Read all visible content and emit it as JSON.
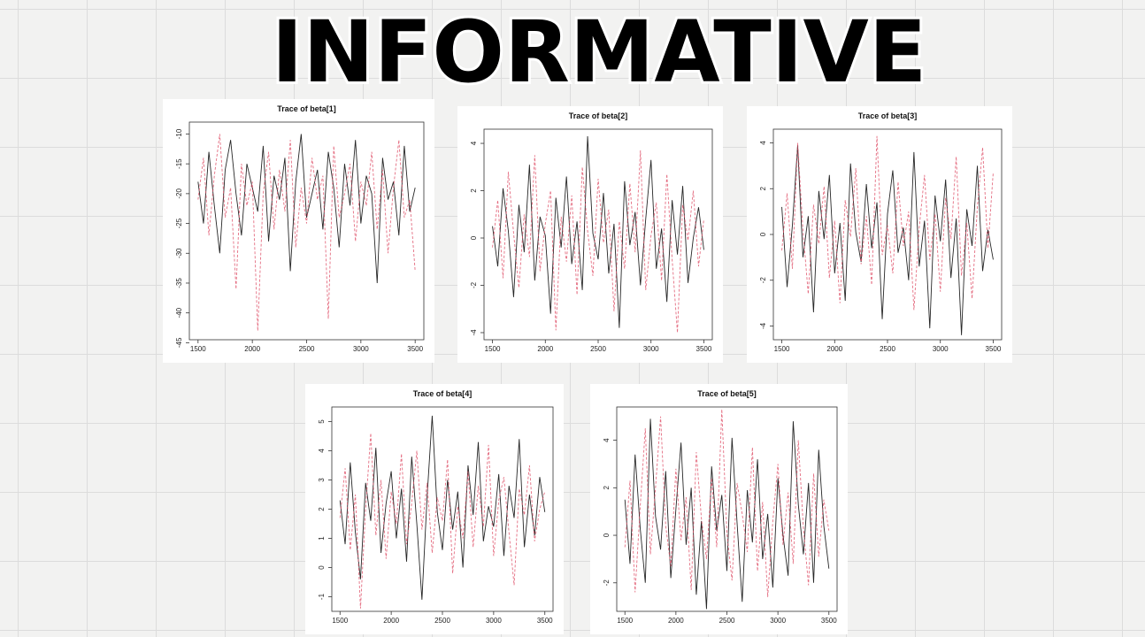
{
  "header": {
    "title": "INFORMATIVE"
  },
  "chart_data": [
    {
      "type": "line",
      "title": "Trace of beta[1]",
      "x": [
        1500,
        1550,
        1600,
        1650,
        1700,
        1750,
        1800,
        1850,
        1900,
        1950,
        2000,
        2050,
        2100,
        2150,
        2200,
        2250,
        2300,
        2350,
        2400,
        2450,
        2500,
        2550,
        2600,
        2650,
        2700,
        2750,
        2800,
        2850,
        2900,
        2950,
        3000,
        3050,
        3100,
        3150,
        3200,
        3250,
        3300,
        3350,
        3400,
        3450,
        3500
      ],
      "series": [
        {
          "color": "#000000",
          "line_style": "solid",
          "values": [
            -18,
            -25,
            -13,
            -22,
            -30,
            -16,
            -11,
            -20,
            -27,
            -15,
            -19,
            -23,
            -12,
            -28,
            -17,
            -21,
            -14,
            -33,
            -18,
            -10,
            -24,
            -20,
            -16,
            -26,
            -13,
            -19,
            -29,
            -15,
            -22,
            -11,
            -25,
            -17,
            -20,
            -35,
            -14,
            -21,
            -18,
            -27,
            -12,
            -23,
            -19
          ]
        },
        {
          "color": "#df536b",
          "line_style": "dashed",
          "values": [
            -21,
            -14,
            -27,
            -17,
            -10,
            -24,
            -19,
            -36,
            -15,
            -22,
            -18,
            -43,
            -20,
            -13,
            -26,
            -16,
            -23,
            -11,
            -29,
            -19,
            -25,
            -14,
            -21,
            -17,
            -41,
            -12,
            -24,
            -20,
            -15,
            -28,
            -18,
            -22,
            -13,
            -26,
            -16,
            -30,
            -19,
            -11,
            -24,
            -21,
            -33
          ]
        }
      ],
      "xlim": [
        1420,
        3580
      ],
      "xticks": [
        1500,
        2000,
        2500,
        3000,
        3500
      ],
      "ylim": [
        -44.5,
        -8
      ],
      "yticks": [
        -45,
        -40,
        -35,
        -30,
        -25,
        -20,
        -15,
        -10
      ]
    },
    {
      "type": "line",
      "title": "Trace of beta[2]",
      "x": [
        1500,
        1550,
        1600,
        1650,
        1700,
        1750,
        1800,
        1850,
        1900,
        1950,
        2000,
        2050,
        2100,
        2150,
        2200,
        2250,
        2300,
        2350,
        2400,
        2450,
        2500,
        2550,
        2600,
        2650,
        2700,
        2750,
        2800,
        2850,
        2900,
        2950,
        3000,
        3050,
        3100,
        3150,
        3200,
        3250,
        3300,
        3350,
        3400,
        3450,
        3500
      ],
      "series": [
        {
          "color": "#000000",
          "line_style": "solid",
          "values": [
            0.5,
            -1.2,
            2.1,
            0.3,
            -2.5,
            1.4,
            -0.6,
            3.1,
            -1.8,
            0.9,
            0.1,
            -3.2,
            1.7,
            -0.4,
            2.6,
            -1.1,
            0.7,
            -2.2,
            4.3,
            0.2,
            -0.9,
            1.9,
            -1.5,
            0.6,
            -3.8,
            2.4,
            -0.3,
            1.1,
            -2.0,
            0.8,
            3.3,
            -1.3,
            0.4,
            -2.7,
            1.6,
            -0.7,
            2.2,
            -1.9,
            0.0,
            1.3,
            -0.5
          ]
        },
        {
          "color": "#df536b",
          "line_style": "dashed",
          "values": [
            -0.4,
            1.6,
            -1.7,
            2.8,
            0.2,
            -2.1,
            1.0,
            -0.8,
            3.5,
            -1.4,
            0.6,
            2.0,
            -3.9,
            0.9,
            -1.0,
            1.8,
            -2.4,
            3.0,
            0.3,
            -1.6,
            2.5,
            -0.2,
            1.2,
            -3.1,
            0.7,
            -1.3,
            2.3,
            -0.6,
            3.7,
            -2.2,
            0.1,
            1.5,
            -1.8,
            2.7,
            -0.9,
            -4.0,
            1.4,
            -0.1,
            2.0,
            -1.2,
            0.8
          ]
        }
      ],
      "xlim": [
        1420,
        3580
      ],
      "xticks": [
        1500,
        2000,
        2500,
        3000,
        3500
      ],
      "ylim": [
        -4.3,
        4.6
      ],
      "yticks": [
        -4,
        -2,
        0,
        2,
        4
      ]
    },
    {
      "type": "line",
      "title": "Trace of beta[3]",
      "x": [
        1500,
        1550,
        1600,
        1650,
        1700,
        1750,
        1800,
        1850,
        1900,
        1950,
        2000,
        2050,
        2100,
        2150,
        2200,
        2250,
        2300,
        2350,
        2400,
        2450,
        2500,
        2550,
        2600,
        2650,
        2700,
        2750,
        2800,
        2850,
        2900,
        2950,
        3000,
        3050,
        3100,
        3150,
        3200,
        3250,
        3300,
        3350,
        3400,
        3450,
        3500
      ],
      "series": [
        {
          "color": "#000000",
          "line_style": "solid",
          "values": [
            1.2,
            -2.3,
            0.4,
            3.9,
            -1.0,
            0.8,
            -3.4,
            1.9,
            -0.2,
            2.6,
            -1.7,
            0.5,
            -2.9,
            3.1,
            0.1,
            -1.2,
            2.2,
            -0.6,
            1.4,
            -3.7,
            0.9,
            2.8,
            -0.8,
            0.3,
            -2.0,
            3.6,
            -1.4,
            0.6,
            -4.1,
            1.7,
            -0.3,
            2.4,
            -1.9,
            0.7,
            -4.4,
            1.1,
            -0.5,
            3.0,
            -1.6,
            0.2,
            -1.1
          ]
        },
        {
          "color": "#df536b",
          "line_style": "dashed",
          "values": [
            -0.7,
            1.8,
            -1.5,
            4.0,
            0.2,
            -2.6,
            1.3,
            -0.4,
            2.1,
            -1.9,
            0.6,
            -3.0,
            1.5,
            -0.1,
            2.9,
            -1.3,
            0.8,
            -2.2,
            4.3,
            -0.9,
            0.4,
            -1.7,
            2.3,
            -0.5,
            1.0,
            -3.3,
            0.3,
            2.6,
            -1.1,
            0.9,
            -2.5,
            1.6,
            -0.2,
            3.4,
            -1.8,
            0.5,
            -2.8,
            1.2,
            3.8,
            -0.6,
            2.7
          ]
        }
      ],
      "xlim": [
        1420,
        3580
      ],
      "xticks": [
        1500,
        2000,
        2500,
        3000,
        3500
      ],
      "ylim": [
        -4.6,
        4.6
      ],
      "yticks": [
        -4,
        -2,
        0,
        2,
        4
      ]
    },
    {
      "type": "line",
      "title": "Trace of beta[4]",
      "x": [
        1500,
        1550,
        1600,
        1650,
        1700,
        1750,
        1800,
        1850,
        1900,
        1950,
        2000,
        2050,
        2100,
        2150,
        2200,
        2250,
        2300,
        2350,
        2400,
        2450,
        2500,
        2550,
        2600,
        2650,
        2700,
        2750,
        2800,
        2850,
        2900,
        2950,
        3000,
        3050,
        3100,
        3150,
        3200,
        3250,
        3300,
        3350,
        3400,
        3450,
        3500
      ],
      "series": [
        {
          "color": "#000000",
          "line_style": "solid",
          "values": [
            2.3,
            0.8,
            3.6,
            1.2,
            -0.4,
            2.9,
            1.6,
            4.1,
            0.5,
            2.2,
            3.3,
            1.0,
            2.7,
            0.2,
            3.8,
            1.5,
            -1.1,
            2.4,
            5.2,
            1.9,
            0.6,
            3.0,
            1.3,
            2.6,
            0.0,
            3.5,
            1.8,
            4.3,
            0.9,
            2.1,
            1.4,
            3.2,
            0.4,
            2.8,
            1.7,
            4.4,
            0.7,
            2.5,
            1.1,
            3.1,
            1.9
          ]
        },
        {
          "color": "#df536b",
          "line_style": "dashed",
          "values": [
            1.7,
            3.4,
            0.6,
            2.5,
            -1.4,
            2.0,
            4.6,
            1.1,
            3.0,
            0.3,
            2.6,
            1.5,
            3.9,
            0.8,
            2.2,
            4.0,
            1.3,
            2.9,
            0.5,
            2.4,
            1.6,
            3.7,
            -0.2,
            2.1,
            1.0,
            3.3,
            0.7,
            2.8,
            1.4,
            4.2,
            0.4,
            2.3,
            3.1,
            1.2,
            -0.6,
            2.7,
            1.8,
            3.5,
            0.9,
            2.0,
            2.6
          ]
        }
      ],
      "xlim": [
        1420,
        3580
      ],
      "xticks": [
        1500,
        2000,
        2500,
        3000,
        3500
      ],
      "ylim": [
        -1.5,
        5.5
      ],
      "yticks": [
        -1,
        0,
        1,
        2,
        3,
        4,
        5
      ]
    },
    {
      "type": "line",
      "title": "Trace of beta[5]",
      "x": [
        1500,
        1550,
        1600,
        1650,
        1700,
        1750,
        1800,
        1850,
        1900,
        1950,
        2000,
        2050,
        2100,
        2150,
        2200,
        2250,
        2300,
        2350,
        2400,
        2450,
        2500,
        2550,
        2600,
        2650,
        2700,
        2750,
        2800,
        2850,
        2900,
        2950,
        3000,
        3050,
        3100,
        3150,
        3200,
        3250,
        3300,
        3350,
        3400,
        3450,
        3500
      ],
      "series": [
        {
          "color": "#000000",
          "line_style": "solid",
          "values": [
            1.5,
            -1.2,
            3.4,
            0.3,
            -2.0,
            4.9,
            0.8,
            -0.6,
            2.7,
            -1.8,
            1.1,
            3.9,
            -0.4,
            2.0,
            -2.5,
            0.6,
            -3.1,
            2.9,
            0.2,
            1.7,
            -1.5,
            4.1,
            0.5,
            -2.8,
            1.9,
            -0.3,
            3.2,
            -1.0,
            0.9,
            -2.2,
            2.4,
            0.0,
            -1.7,
            4.8,
            1.3,
            -0.8,
            2.2,
            -2.0,
            3.6,
            0.4,
            -1.4
          ]
        },
        {
          "color": "#df536b",
          "line_style": "dashed",
          "values": [
            -0.5,
            2.3,
            -2.4,
            1.2,
            4.5,
            -0.8,
            2.0,
            5.0,
            0.4,
            -1.3,
            2.8,
            -0.2,
            1.6,
            -2.3,
            3.5,
            0.7,
            -1.0,
            2.4,
            -0.5,
            5.3,
            0.1,
            -1.9,
            2.2,
            0.9,
            -0.7,
            3.7,
            -1.5,
            1.4,
            -2.6,
            0.6,
            3.0,
            -0.4,
            1.8,
            -1.2,
            4.0,
            0.3,
            -2.1,
            2.6,
            -0.9,
            1.5,
            0.2
          ]
        }
      ],
      "xlim": [
        1420,
        3580
      ],
      "xticks": [
        1500,
        2000,
        2500,
        3000,
        3500
      ],
      "ylim": [
        -3.2,
        5.4
      ],
      "yticks": [
        -2,
        0,
        2,
        4
      ]
    }
  ]
}
